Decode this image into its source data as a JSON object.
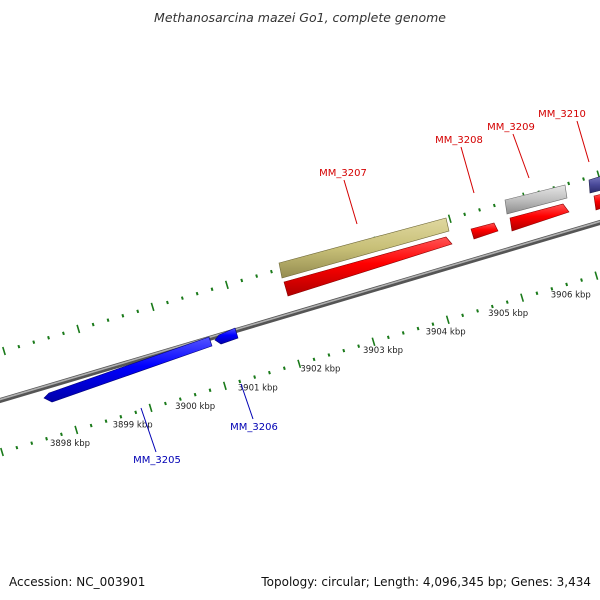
{
  "title": "Methanosarcina mazei Go1, complete genome",
  "footer": {
    "accession": "Accession: NC_003901",
    "summary": "Topology: circular; Length: 4,096,345 bp; Genes: 3,434"
  },
  "colors": {
    "forward": "#ff0000",
    "reverse": "#0000ff",
    "olive": "#c8c078",
    "grey": "#bdbdbd",
    "slate": "#4a4a9a",
    "ticks": "#1a7a1a",
    "backbone": "#8a8a8a"
  },
  "scale_labels": [
    "3898 kbp",
    "3899 kbp",
    "3900 kbp",
    "3901 kbp",
    "3902 kbp",
    "3903 kbp",
    "3904 kbp",
    "3905 kbp",
    "3906 kbp"
  ],
  "genes": [
    {
      "id": "mm3205",
      "label": "MM_3205",
      "strand": "reverse"
    },
    {
      "id": "mm3206",
      "label": "MM_3206",
      "strand": "reverse"
    },
    {
      "id": "mm3207",
      "label": "MM_3207",
      "strand": "forward"
    },
    {
      "id": "mm3208",
      "label": "MM_3208",
      "strand": "forward"
    },
    {
      "id": "mm3209",
      "label": "MM_3209",
      "strand": "forward"
    },
    {
      "id": "mm3210",
      "label": "MM_3210",
      "strand": "forward"
    }
  ]
}
